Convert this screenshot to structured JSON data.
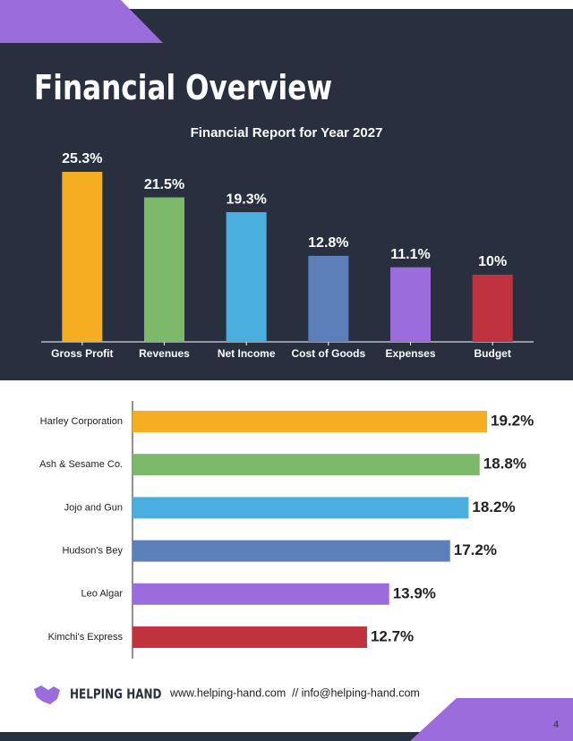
{
  "title": "Financial Overview",
  "chart_data": [
    {
      "type": "bar",
      "title": "Financial Report for Year 2027",
      "categories": [
        "Gross Profit",
        "Revenues",
        "Net Income",
        "Cost of Goods",
        "Expenses",
        "Budget"
      ],
      "values": [
        25.3,
        21.5,
        19.3,
        12.8,
        11.1,
        10
      ],
      "value_labels": [
        "25.3%",
        "21.5%",
        "19.3%",
        "12.8%",
        "11.1%",
        "10%"
      ],
      "colors": [
        "#f5ae22",
        "#7db96b",
        "#4aafdd",
        "#5b7fb8",
        "#9b6ddc",
        "#c0333e"
      ]
    },
    {
      "type": "hbar",
      "categories": [
        "Harley Corporation",
        "Ash & Sesame Co.",
        "Jojo and Gun",
        "Hudson's Bey",
        "Leo Algar",
        "Kimchi's Express"
      ],
      "values": [
        19.2,
        18.8,
        18.2,
        17.2,
        13.9,
        12.7
      ],
      "value_labels": [
        "19.2%",
        "18.8%",
        "18.2%",
        "17.2%",
        "13.9%",
        "12.7%"
      ],
      "colors": [
        "#f5ae22",
        "#7db96b",
        "#4aafdd",
        "#5b7fb8",
        "#9b6ddc",
        "#c0333e"
      ]
    }
  ],
  "footer": {
    "brand": "HELPING HAND",
    "contact": "www.helping-hand.com  // info@helping-hand.com",
    "page": "4"
  }
}
